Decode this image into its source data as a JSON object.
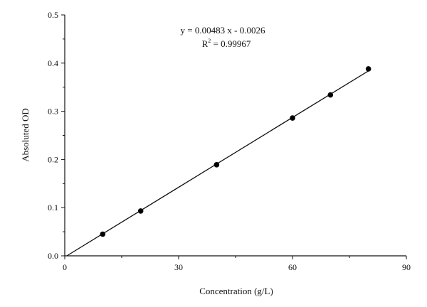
{
  "chart_data": {
    "type": "scatter",
    "title": "",
    "xlabel": "Concentration (g/L)",
    "ylabel": "Absoluted OD",
    "xlim": [
      0,
      90
    ],
    "ylim": [
      0,
      0.5
    ],
    "x_ticks": [
      0,
      30,
      60,
      90
    ],
    "x_tick_labels": [
      "0",
      "30",
      "60",
      "90"
    ],
    "y_ticks": [
      0.0,
      0.1,
      0.2,
      0.3,
      0.4,
      0.5
    ],
    "y_tick_labels": [
      "0.0",
      "0.1",
      "0.2",
      "0.3",
      "0.4",
      "0.5"
    ],
    "grid": false,
    "series": [
      {
        "x": [
          10,
          20,
          40,
          60,
          70,
          80
        ],
        "y": [
          0.045,
          0.093,
          0.189,
          0.286,
          0.334,
          0.388
        ]
      }
    ],
    "fit_line": {
      "slope": 0.00483,
      "intercept": -0.0026,
      "x_range": [
        0,
        80
      ]
    },
    "annotations": {
      "equation": "y = 0.00483 x - 0.0026",
      "r2_prefix": "R",
      "r2_sup": "2",
      "r2_rest": " = 0.99967"
    }
  }
}
